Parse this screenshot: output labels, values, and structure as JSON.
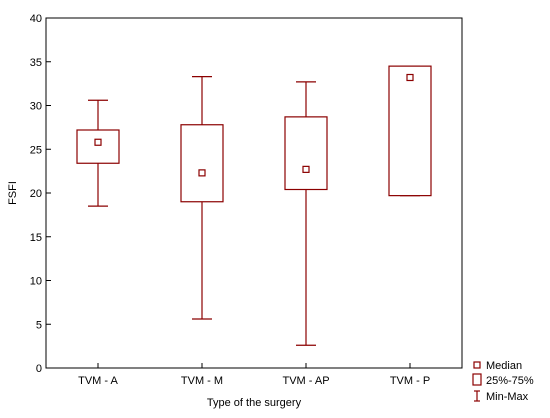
{
  "chart_data": {
    "type": "boxplot",
    "xlabel": "Type of the surgery",
    "ylabel": "FSFI",
    "ylim": [
      0,
      40
    ],
    "yticks": [
      0,
      5,
      10,
      15,
      20,
      25,
      30,
      35,
      40
    ],
    "grid": false,
    "legend_position": "bottom-right",
    "color": "#8b0000",
    "categories": [
      "TVM - A",
      "TVM - M",
      "TVM - AP",
      "TVM - P"
    ],
    "boxes": [
      {
        "category": "TVM - A",
        "min": 18.5,
        "q1": 23.4,
        "median": 25.8,
        "q3": 27.2,
        "max": 30.6
      },
      {
        "category": "TVM - M",
        "min": 5.6,
        "q1": 19.0,
        "median": 22.3,
        "q3": 27.8,
        "max": 33.3
      },
      {
        "category": "TVM - AP",
        "min": 2.6,
        "q1": 20.4,
        "median": 22.7,
        "q3": 28.7,
        "max": 32.7
      },
      {
        "category": "TVM - P",
        "min": 19.7,
        "q1": 19.7,
        "median": 33.2,
        "q3": 34.5,
        "max": 34.5
      }
    ],
    "legend": [
      {
        "label": "Median",
        "symbol": "square-marker"
      },
      {
        "label": "25%-75%",
        "symbol": "box"
      },
      {
        "label": "Min-Max",
        "symbol": "whisker"
      }
    ]
  }
}
